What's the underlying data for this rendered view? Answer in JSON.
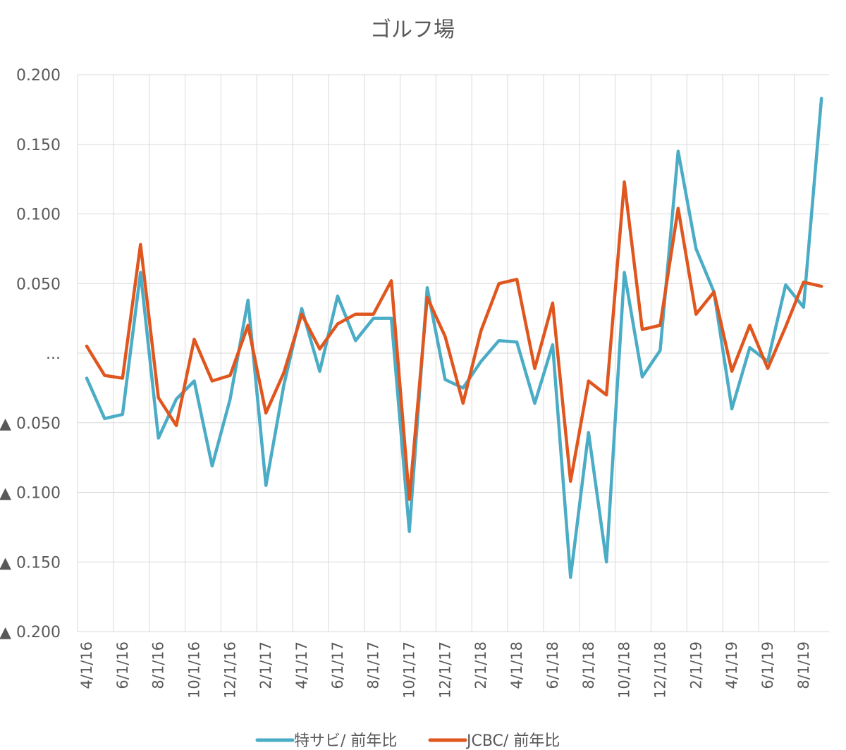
{
  "chart_data": {
    "type": "line",
    "title": "ゴルフ場",
    "xlabel": "",
    "ylabel": "",
    "ylim": [
      -0.2,
      0.2
    ],
    "yticks": [
      {
        "value": 0.2,
        "label": "0.200"
      },
      {
        "value": 0.15,
        "label": "0.150"
      },
      {
        "value": 0.1,
        "label": "0.100"
      },
      {
        "value": 0.05,
        "label": "0.050"
      },
      {
        "value": 0.0,
        "label": "..."
      },
      {
        "value": -0.05,
        "label": "▲ 0.050"
      },
      {
        "value": -0.1,
        "label": "▲ 0.100"
      },
      {
        "value": -0.15,
        "label": "▲ 0.150"
      },
      {
        "value": -0.2,
        "label": "▲ 0.200"
      }
    ],
    "xticks": [
      "4/1/16",
      "6/1/16",
      "8/1/16",
      "10/1/16",
      "12/1/16",
      "2/1/17",
      "4/1/17",
      "6/1/17",
      "8/1/17",
      "10/1/17",
      "12/1/17",
      "2/1/18",
      "4/1/18",
      "6/1/18",
      "8/1/18",
      "10/1/18",
      "12/1/18",
      "2/1/19",
      "4/1/19",
      "6/1/19",
      "8/1/19"
    ],
    "x": [
      "2016-04",
      "2016-05",
      "2016-06",
      "2016-07",
      "2016-08",
      "2016-09",
      "2016-10",
      "2016-11",
      "2016-12",
      "2017-01",
      "2017-02",
      "2017-03",
      "2017-04",
      "2017-05",
      "2017-06",
      "2017-07",
      "2017-08",
      "2017-09",
      "2017-10",
      "2017-11",
      "2017-12",
      "2018-01",
      "2018-02",
      "2018-03",
      "2018-04",
      "2018-05",
      "2018-06",
      "2018-07",
      "2018-08",
      "2018-09",
      "2018-10",
      "2018-11",
      "2018-12",
      "2019-01",
      "2019-02",
      "2019-03",
      "2019-04",
      "2019-05",
      "2019-06",
      "2019-07",
      "2019-08",
      "2019-09"
    ],
    "series": [
      {
        "name": "特サビ/ 前年比",
        "color": "#4bacc6",
        "values": [
          -0.018,
          -0.047,
          -0.044,
          0.058,
          -0.061,
          -0.033,
          -0.02,
          -0.081,
          -0.033,
          0.038,
          -0.095,
          -0.023,
          0.032,
          -0.013,
          0.041,
          0.009,
          0.025,
          0.025,
          -0.128,
          0.047,
          -0.019,
          -0.025,
          -0.006,
          0.009,
          0.008,
          -0.036,
          0.006,
          -0.161,
          -0.057,
          -0.15,
          0.058,
          -0.017,
          0.002,
          0.145,
          0.075,
          0.044,
          -0.04,
          0.004,
          -0.006,
          0.049,
          0.033,
          0.183
        ]
      },
      {
        "name": "JCBC/ 前年比",
        "color": "#e0561f",
        "values": [
          0.005,
          -0.016,
          -0.018,
          0.078,
          -0.032,
          -0.052,
          0.01,
          -0.02,
          -0.016,
          0.02,
          -0.043,
          -0.014,
          0.028,
          0.003,
          0.021,
          0.028,
          0.028,
          0.052,
          -0.105,
          0.04,
          0.012,
          -0.036,
          0.016,
          0.05,
          0.053,
          -0.011,
          0.036,
          -0.092,
          -0.02,
          -0.03,
          0.123,
          0.017,
          0.02,
          0.104,
          0.028,
          0.044,
          -0.013,
          0.02,
          -0.011,
          0.019,
          0.051,
          0.048
        ]
      }
    ],
    "grid": true,
    "legend_position": "bottom"
  }
}
